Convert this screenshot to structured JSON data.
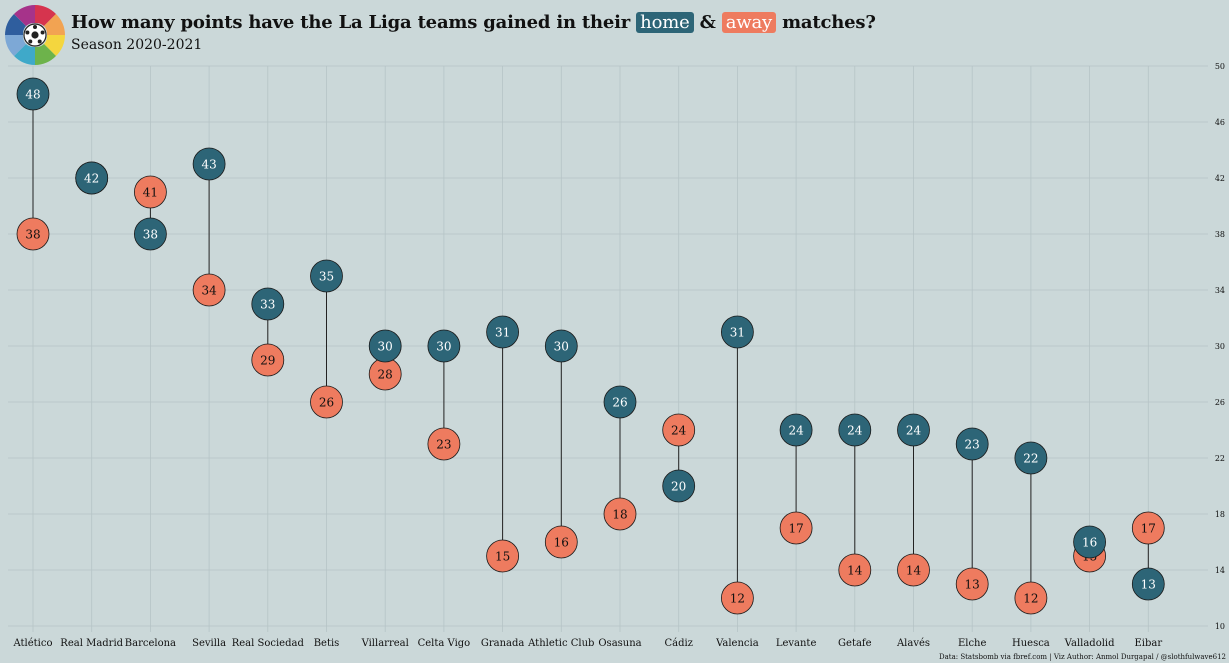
{
  "header": {
    "title_pre": "How many points have the La Liga teams gained in their",
    "title_home": "home",
    "title_amp": "&",
    "title_away": "away",
    "title_post": "matches?",
    "subtitle": "Season 2020-2021"
  },
  "credit": "Data: Statsbomb via fbref.com | Viz Author: Anmol Durgapal / @slothfulwave612",
  "colors": {
    "background": "#cbd8d9",
    "home": "#2d6577",
    "away": "#ee7b5f",
    "grid": "#b6c4c6",
    "connector": "#222222"
  },
  "chart_data": {
    "type": "dumbbell",
    "title": "How many points have the La Liga teams gained in their home & away matches?",
    "subtitle": "Season 2020-2021",
    "xlabel": "",
    "ylabel": "",
    "ylim": [
      10,
      50
    ],
    "yticks": [
      10,
      14,
      18,
      22,
      26,
      30,
      34,
      38,
      42,
      46,
      50
    ],
    "y_axis_position": "right",
    "grid": true,
    "categories": [
      "Atlético",
      "Real Madrid",
      "Barcelona",
      "Sevilla",
      "Real Sociedad",
      "Betis",
      "Villarreal",
      "Celta Vigo",
      "Granada",
      "Athletic Club",
      "Osasuna",
      "Cádiz",
      "Valencia",
      "Levante",
      "Getafe",
      "Alavés",
      "Elche",
      "Huesca",
      "Valladolid",
      "Eibar"
    ],
    "series": [
      {
        "name": "home",
        "values": [
          48,
          42,
          38,
          43,
          33,
          35,
          30,
          30,
          31,
          30,
          26,
          20,
          31,
          24,
          24,
          24,
          23,
          22,
          16,
          13
        ]
      },
      {
        "name": "away",
        "values": [
          38,
          42,
          41,
          34,
          29,
          26,
          28,
          23,
          15,
          16,
          18,
          24,
          12,
          17,
          14,
          14,
          13,
          12,
          15,
          17
        ]
      }
    ]
  }
}
